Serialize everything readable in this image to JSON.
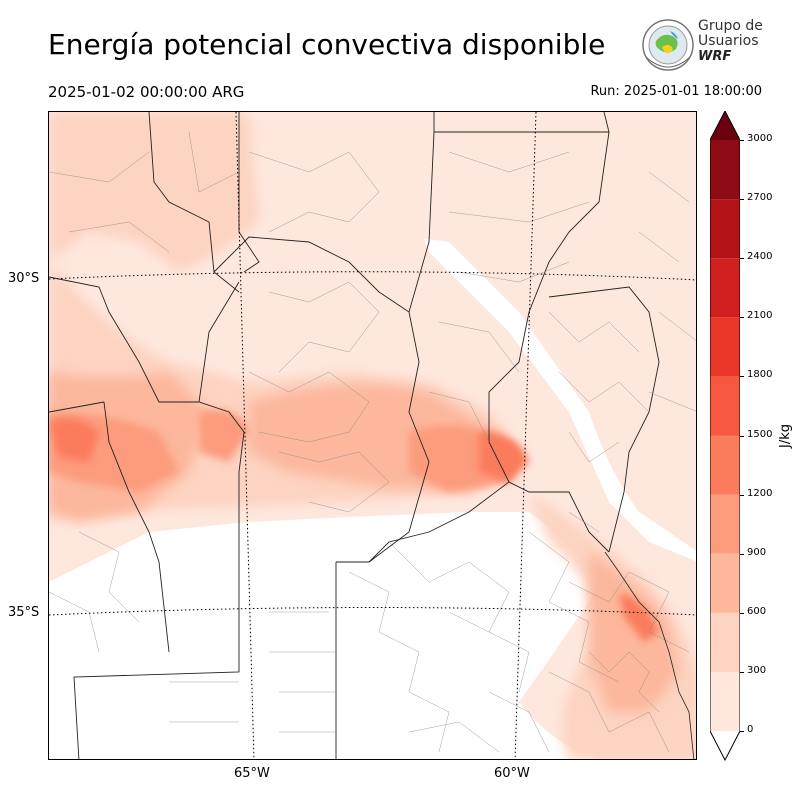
{
  "header": {
    "title": "Energía potencial convectiva disponible",
    "valid_time": "2025-01-02 00:00:00 ARG",
    "run_time": "Run: 2025-01-01 18:00:00"
  },
  "logo": {
    "line1": "Grupo de",
    "line2": "Usuarios",
    "line3": "WRF"
  },
  "map": {
    "lat_labels": [
      "30°S",
      "35°S"
    ],
    "lon_labels": [
      "65°W",
      "60°W"
    ]
  },
  "colorbar": {
    "unit": "J/kg",
    "ticks": [
      "0",
      "300",
      "600",
      "900",
      "1200",
      "1500",
      "1800",
      "2100",
      "2400",
      "2700",
      "3000"
    ],
    "colors": [
      "#fee8de",
      "#fdd3c1",
      "#fcb79c",
      "#fc9b7d",
      "#fb7c5c",
      "#f5573f",
      "#eb362a",
      "#d21f20",
      "#b31217",
      "#8d0b13"
    ],
    "over_color": "#6b010e",
    "extend": "both"
  }
}
